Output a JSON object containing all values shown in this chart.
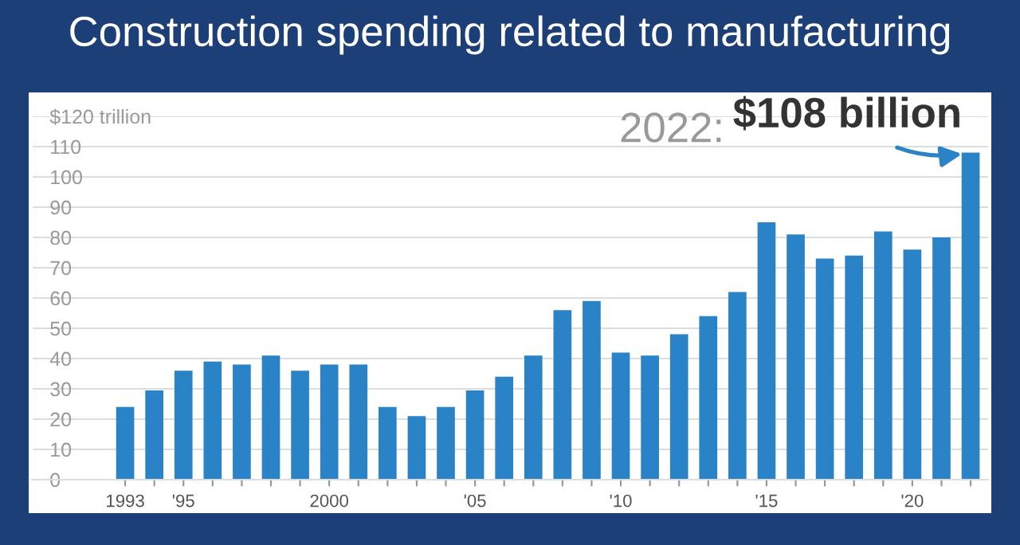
{
  "chart_data": {
    "type": "bar",
    "title": "Construction spending related to manufacturing",
    "categories": [
      "1993",
      null,
      "'95",
      null,
      null,
      null,
      null,
      "2000",
      null,
      null,
      null,
      null,
      "'05",
      null,
      null,
      null,
      null,
      "'10",
      null,
      null,
      null,
      null,
      "'15",
      null,
      null,
      null,
      null,
      "'20",
      null,
      null
    ],
    "values": [
      24,
      29.5,
      36,
      39,
      38,
      41,
      36,
      38,
      38,
      24,
      21,
      24,
      29.5,
      34,
      41,
      56,
      59,
      42,
      41,
      48,
      54,
      62,
      85,
      81,
      73,
      74,
      82,
      76,
      80,
      108
    ],
    "color": "#2a83c6",
    "ylim": [
      0,
      120
    ],
    "yticks": [
      0,
      10,
      20,
      30,
      40,
      50,
      60,
      70,
      80,
      90,
      100,
      110,
      {
        "value": 120,
        "label": "$120 trillion"
      }
    ],
    "grid": "y",
    "annotations": [
      "2022:",
      "$108 billion"
    ]
  }
}
